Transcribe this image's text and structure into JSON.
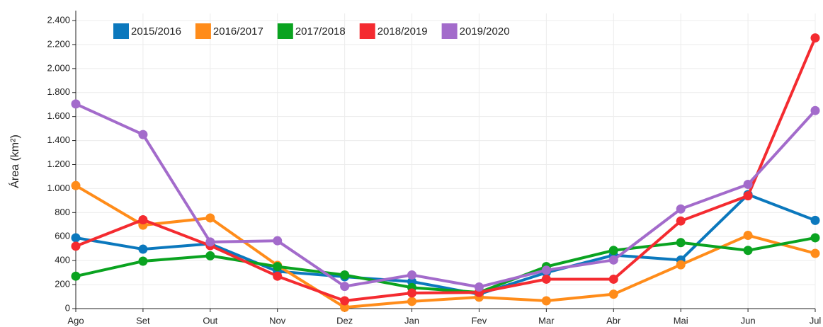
{
  "chart_data": {
    "type": "line",
    "y_label": "Área (km²)",
    "categories": [
      "Ago",
      "Set",
      "Out",
      "Nov",
      "Dez",
      "Jan",
      "Fev",
      "Mar",
      "Abr",
      "Mai",
      "Jun",
      "Jul"
    ],
    "series": [
      {
        "name": "2015/2016",
        "color": "#0b78bd",
        "values": [
          590,
          495,
          540,
          310,
          265,
          225,
          120,
          300,
          445,
          405,
          950,
          735
        ]
      },
      {
        "name": "2016/2017",
        "color": "#ff8c1a",
        "values": [
          1025,
          695,
          755,
          360,
          10,
          60,
          95,
          65,
          120,
          365,
          610,
          460
        ]
      },
      {
        "name": "2017/2018",
        "color": "#0aa320",
        "values": [
          270,
          395,
          440,
          350,
          280,
          175,
          135,
          350,
          485,
          550,
          485,
          590
        ]
      },
      {
        "name": "2018/2019",
        "color": "#f42b30",
        "values": [
          520,
          740,
          525,
          270,
          65,
          130,
          135,
          245,
          245,
          730,
          940,
          2255
        ]
      },
      {
        "name": "2019/2020",
        "color": "#a36bcb",
        "values": [
          1705,
          1450,
          555,
          565,
          185,
          280,
          180,
          320,
          405,
          830,
          1035,
          1650
        ]
      }
    ],
    "ylim": [
      0,
      2400
    ],
    "yticks": [
      0,
      200,
      400,
      600,
      800,
      {
        "value": 1000,
        "label": "1.000"
      },
      {
        "value": 1200,
        "label": "1.200"
      },
      {
        "value": 1400,
        "label": "1.400"
      },
      {
        "value": 1600,
        "label": "1.600"
      },
      {
        "value": 1800,
        "label": "1.800"
      },
      {
        "value": 2000,
        "label": "2.000"
      },
      {
        "value": 2200,
        "label": "2.200"
      },
      {
        "value": 2400,
        "label": "2.400"
      }
    ],
    "grid": true,
    "legend": "top-left"
  }
}
